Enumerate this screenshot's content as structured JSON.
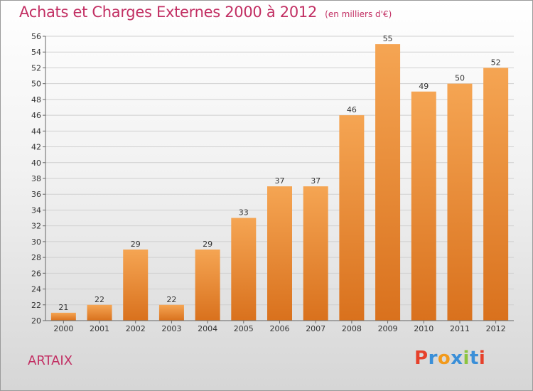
{
  "title": "Achats et Charges Externes 2000 à 2012",
  "unit_note": "(en milliers d'€)",
  "commune": "ARTAIX",
  "logo_text": "Proxiti",
  "logo_colors": [
    "#e6412b",
    "#3a8fd8",
    "#f29a1c",
    "#3a8fd8",
    "#8cc43f",
    "#3a8fd8",
    "#e6412b"
  ],
  "colors": {
    "bar_top": "#f5a553",
    "bar_bottom": "#d9711d",
    "title": "#c22f63",
    "grid": "#d0d0d0"
  },
  "chart_data": {
    "type": "bar",
    "categories": [
      "2000",
      "2001",
      "2002",
      "2003",
      "2004",
      "2005",
      "2006",
      "2007",
      "2008",
      "2009",
      "2010",
      "2011",
      "2012"
    ],
    "values": [
      21,
      22,
      29,
      22,
      29,
      33,
      37,
      37,
      46,
      55,
      49,
      50,
      52
    ],
    "ylim": [
      20,
      56
    ],
    "yticks": [
      20,
      22,
      24,
      26,
      28,
      30,
      32,
      34,
      36,
      38,
      40,
      42,
      44,
      46,
      48,
      50,
      52,
      54,
      56
    ],
    "grid": true,
    "data_labels": true
  }
}
